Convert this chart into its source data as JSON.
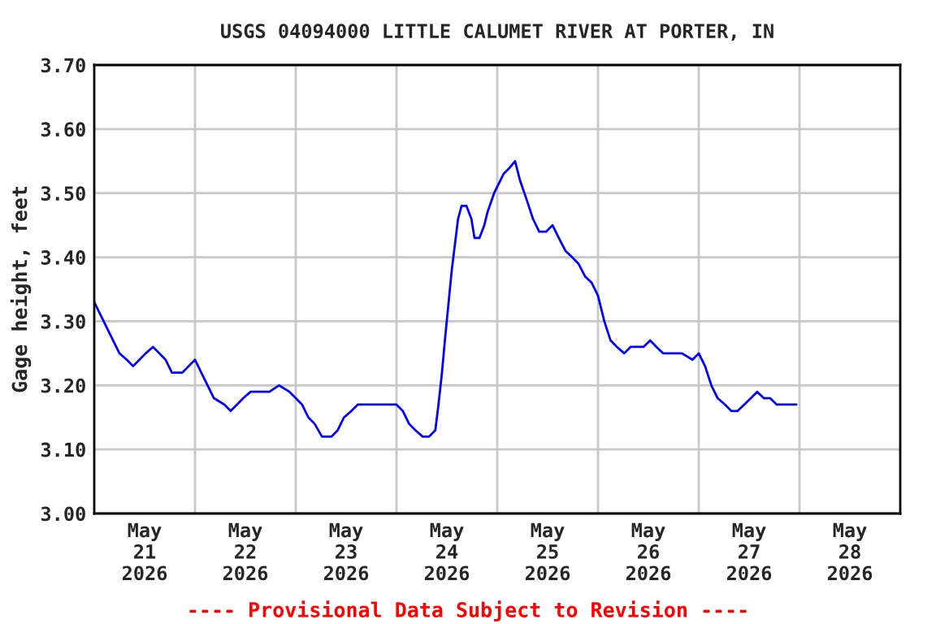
{
  "chart_data": {
    "type": "line",
    "title": "USGS 04094000 LITTLE CALUMET RIVER AT PORTER, IN",
    "ylabel": "Gage height, feet",
    "annotations": [
      "---- Provisional Data Subject to Revision ----"
    ],
    "grid": true,
    "legend": false,
    "marker": "none",
    "line_style": "solid",
    "xlim": [
      "2026-05-21T00:00",
      "2026-05-29T00:00"
    ],
    "xticks": [
      {
        "value": "2026-05-21T12:00",
        "label": "May\n21\n2026"
      },
      {
        "value": "2026-05-22T00:00",
        "label": null
      },
      {
        "value": "2026-05-22T12:00",
        "label": "May\n22\n2026"
      },
      {
        "value": "2026-05-23T00:00",
        "label": null
      },
      {
        "value": "2026-05-23T12:00",
        "label": "May\n23\n2026"
      },
      {
        "value": "2026-05-24T00:00",
        "label": null
      },
      {
        "value": "2026-05-24T12:00",
        "label": "May\n24\n2026"
      },
      {
        "value": "2026-05-25T00:00",
        "label": null
      },
      {
        "value": "2026-05-25T12:00",
        "label": "May\n25\n2026"
      },
      {
        "value": "2026-05-26T00:00",
        "label": null
      },
      {
        "value": "2026-05-26T12:00",
        "label": "May\n26\n2026"
      },
      {
        "value": "2026-05-27T00:00",
        "label": null
      },
      {
        "value": "2026-05-27T12:00",
        "label": "May\n27\n2026"
      },
      {
        "value": "2026-05-28T00:00",
        "label": null
      },
      {
        "value": "2026-05-28T12:00",
        "label": "May\n28\n2026"
      }
    ],
    "ylim": [
      3.0,
      3.7
    ],
    "yticks": [
      {
        "value": 3.0,
        "label": "3.00"
      },
      {
        "value": 3.1,
        "label": "3.10"
      },
      {
        "value": 3.2,
        "label": "3.20"
      },
      {
        "value": 3.3,
        "label": "3.30"
      },
      {
        "value": 3.4,
        "label": "3.40"
      },
      {
        "value": 3.5,
        "label": "3.50"
      },
      {
        "value": 3.6,
        "label": "3.60"
      },
      {
        "value": 3.7,
        "label": "3.70"
      }
    ],
    "series": [
      {
        "color": "#0000ff",
        "x": [
          "2026-05-21T00:00",
          "2026-05-21T01:30",
          "2026-05-21T03:00",
          "2026-05-21T04:30",
          "2026-05-21T06:00",
          "2026-05-21T07:45",
          "2026-05-21T09:15",
          "2026-05-21T10:45",
          "2026-05-21T12:15",
          "2026-05-21T14:00",
          "2026-05-21T15:30",
          "2026-05-21T17:00",
          "2026-05-21T18:30",
          "2026-05-21T21:00",
          "2026-05-21T22:30",
          "2026-05-22T00:00",
          "2026-05-22T01:30",
          "2026-05-22T03:00",
          "2026-05-22T04:30",
          "2026-05-22T07:00",
          "2026-05-22T08:30",
          "2026-05-22T10:00",
          "2026-05-22T11:30",
          "2026-05-22T13:15",
          "2026-05-22T15:30",
          "2026-05-22T17:45",
          "2026-05-22T20:00",
          "2026-05-22T22:30",
          "2026-05-23T00:00",
          "2026-05-23T01:30",
          "2026-05-23T03:00",
          "2026-05-23T04:30",
          "2026-05-23T06:15",
          "2026-05-23T08:30",
          "2026-05-23T10:00",
          "2026-05-23T11:30",
          "2026-05-23T13:15",
          "2026-05-23T14:45",
          "2026-05-23T17:00",
          "2026-05-23T19:15",
          "2026-05-23T21:45",
          "2026-05-24T00:00",
          "2026-05-24T01:30",
          "2026-05-24T03:00",
          "2026-05-24T04:30",
          "2026-05-24T06:15",
          "2026-05-24T07:45",
          "2026-05-24T09:15",
          "2026-05-24T10:00",
          "2026-05-24T10:50",
          "2026-05-24T11:40",
          "2026-05-24T12:25",
          "2026-05-24T13:10",
          "2026-05-24T13:55",
          "2026-05-24T14:40",
          "2026-05-24T15:30",
          "2026-05-24T16:40",
          "2026-05-24T17:50",
          "2026-05-24T18:35",
          "2026-05-24T19:45",
          "2026-05-24T20:55",
          "2026-05-24T21:40",
          "2026-05-24T23:15",
          "2026-05-25T00:00",
          "2026-05-25T01:30",
          "2026-05-25T03:00",
          "2026-05-25T04:15",
          "2026-05-25T05:25",
          "2026-05-25T07:00",
          "2026-05-25T08:30",
          "2026-05-25T10:00",
          "2026-05-25T11:40",
          "2026-05-25T13:10",
          "2026-05-25T14:40",
          "2026-05-25T16:15",
          "2026-05-25T17:50",
          "2026-05-25T19:20",
          "2026-05-25T20:55",
          "2026-05-25T22:30",
          "2026-05-26T00:00",
          "2026-05-26T01:30",
          "2026-05-26T03:00",
          "2026-05-26T04:30",
          "2026-05-26T06:15",
          "2026-05-26T07:45",
          "2026-05-26T09:15",
          "2026-05-26T10:50",
          "2026-05-26T12:25",
          "2026-05-26T13:55",
          "2026-05-26T15:30",
          "2026-05-26T17:50",
          "2026-05-26T20:00",
          "2026-05-26T22:30",
          "2026-05-27T00:00",
          "2026-05-27T01:30",
          "2026-05-27T03:00",
          "2026-05-27T04:30",
          "2026-05-27T06:15",
          "2026-05-27T07:45",
          "2026-05-27T09:15",
          "2026-05-27T10:50",
          "2026-05-27T12:25",
          "2026-05-27T13:55",
          "2026-05-27T15:30",
          "2026-05-27T17:00",
          "2026-05-27T18:35",
          "2026-05-27T20:10",
          "2026-05-27T21:40",
          "2026-05-27T23:15"
        ],
        "values": [
          3.33,
          3.31,
          3.29,
          3.27,
          3.25,
          3.24,
          3.23,
          3.24,
          3.25,
          3.26,
          3.25,
          3.24,
          3.22,
          3.22,
          3.23,
          3.24,
          3.22,
          3.2,
          3.18,
          3.17,
          3.16,
          3.17,
          3.18,
          3.19,
          3.19,
          3.19,
          3.2,
          3.19,
          3.18,
          3.17,
          3.15,
          3.14,
          3.12,
          3.12,
          3.13,
          3.15,
          3.16,
          3.17,
          3.17,
          3.17,
          3.17,
          3.17,
          3.16,
          3.14,
          3.13,
          3.12,
          3.12,
          3.13,
          3.17,
          3.22,
          3.28,
          3.33,
          3.38,
          3.42,
          3.46,
          3.48,
          3.48,
          3.46,
          3.43,
          3.43,
          3.45,
          3.47,
          3.5,
          3.51,
          3.53,
          3.54,
          3.55,
          3.52,
          3.49,
          3.46,
          3.44,
          3.44,
          3.45,
          3.43,
          3.41,
          3.4,
          3.39,
          3.37,
          3.36,
          3.34,
          3.3,
          3.27,
          3.26,
          3.25,
          3.26,
          3.26,
          3.26,
          3.27,
          3.26,
          3.25,
          3.25,
          3.25,
          3.24,
          3.25,
          3.23,
          3.2,
          3.18,
          3.17,
          3.16,
          3.16,
          3.17,
          3.18,
          3.19,
          3.18,
          3.18,
          3.17,
          3.17,
          3.17,
          3.17
        ]
      }
    ]
  }
}
